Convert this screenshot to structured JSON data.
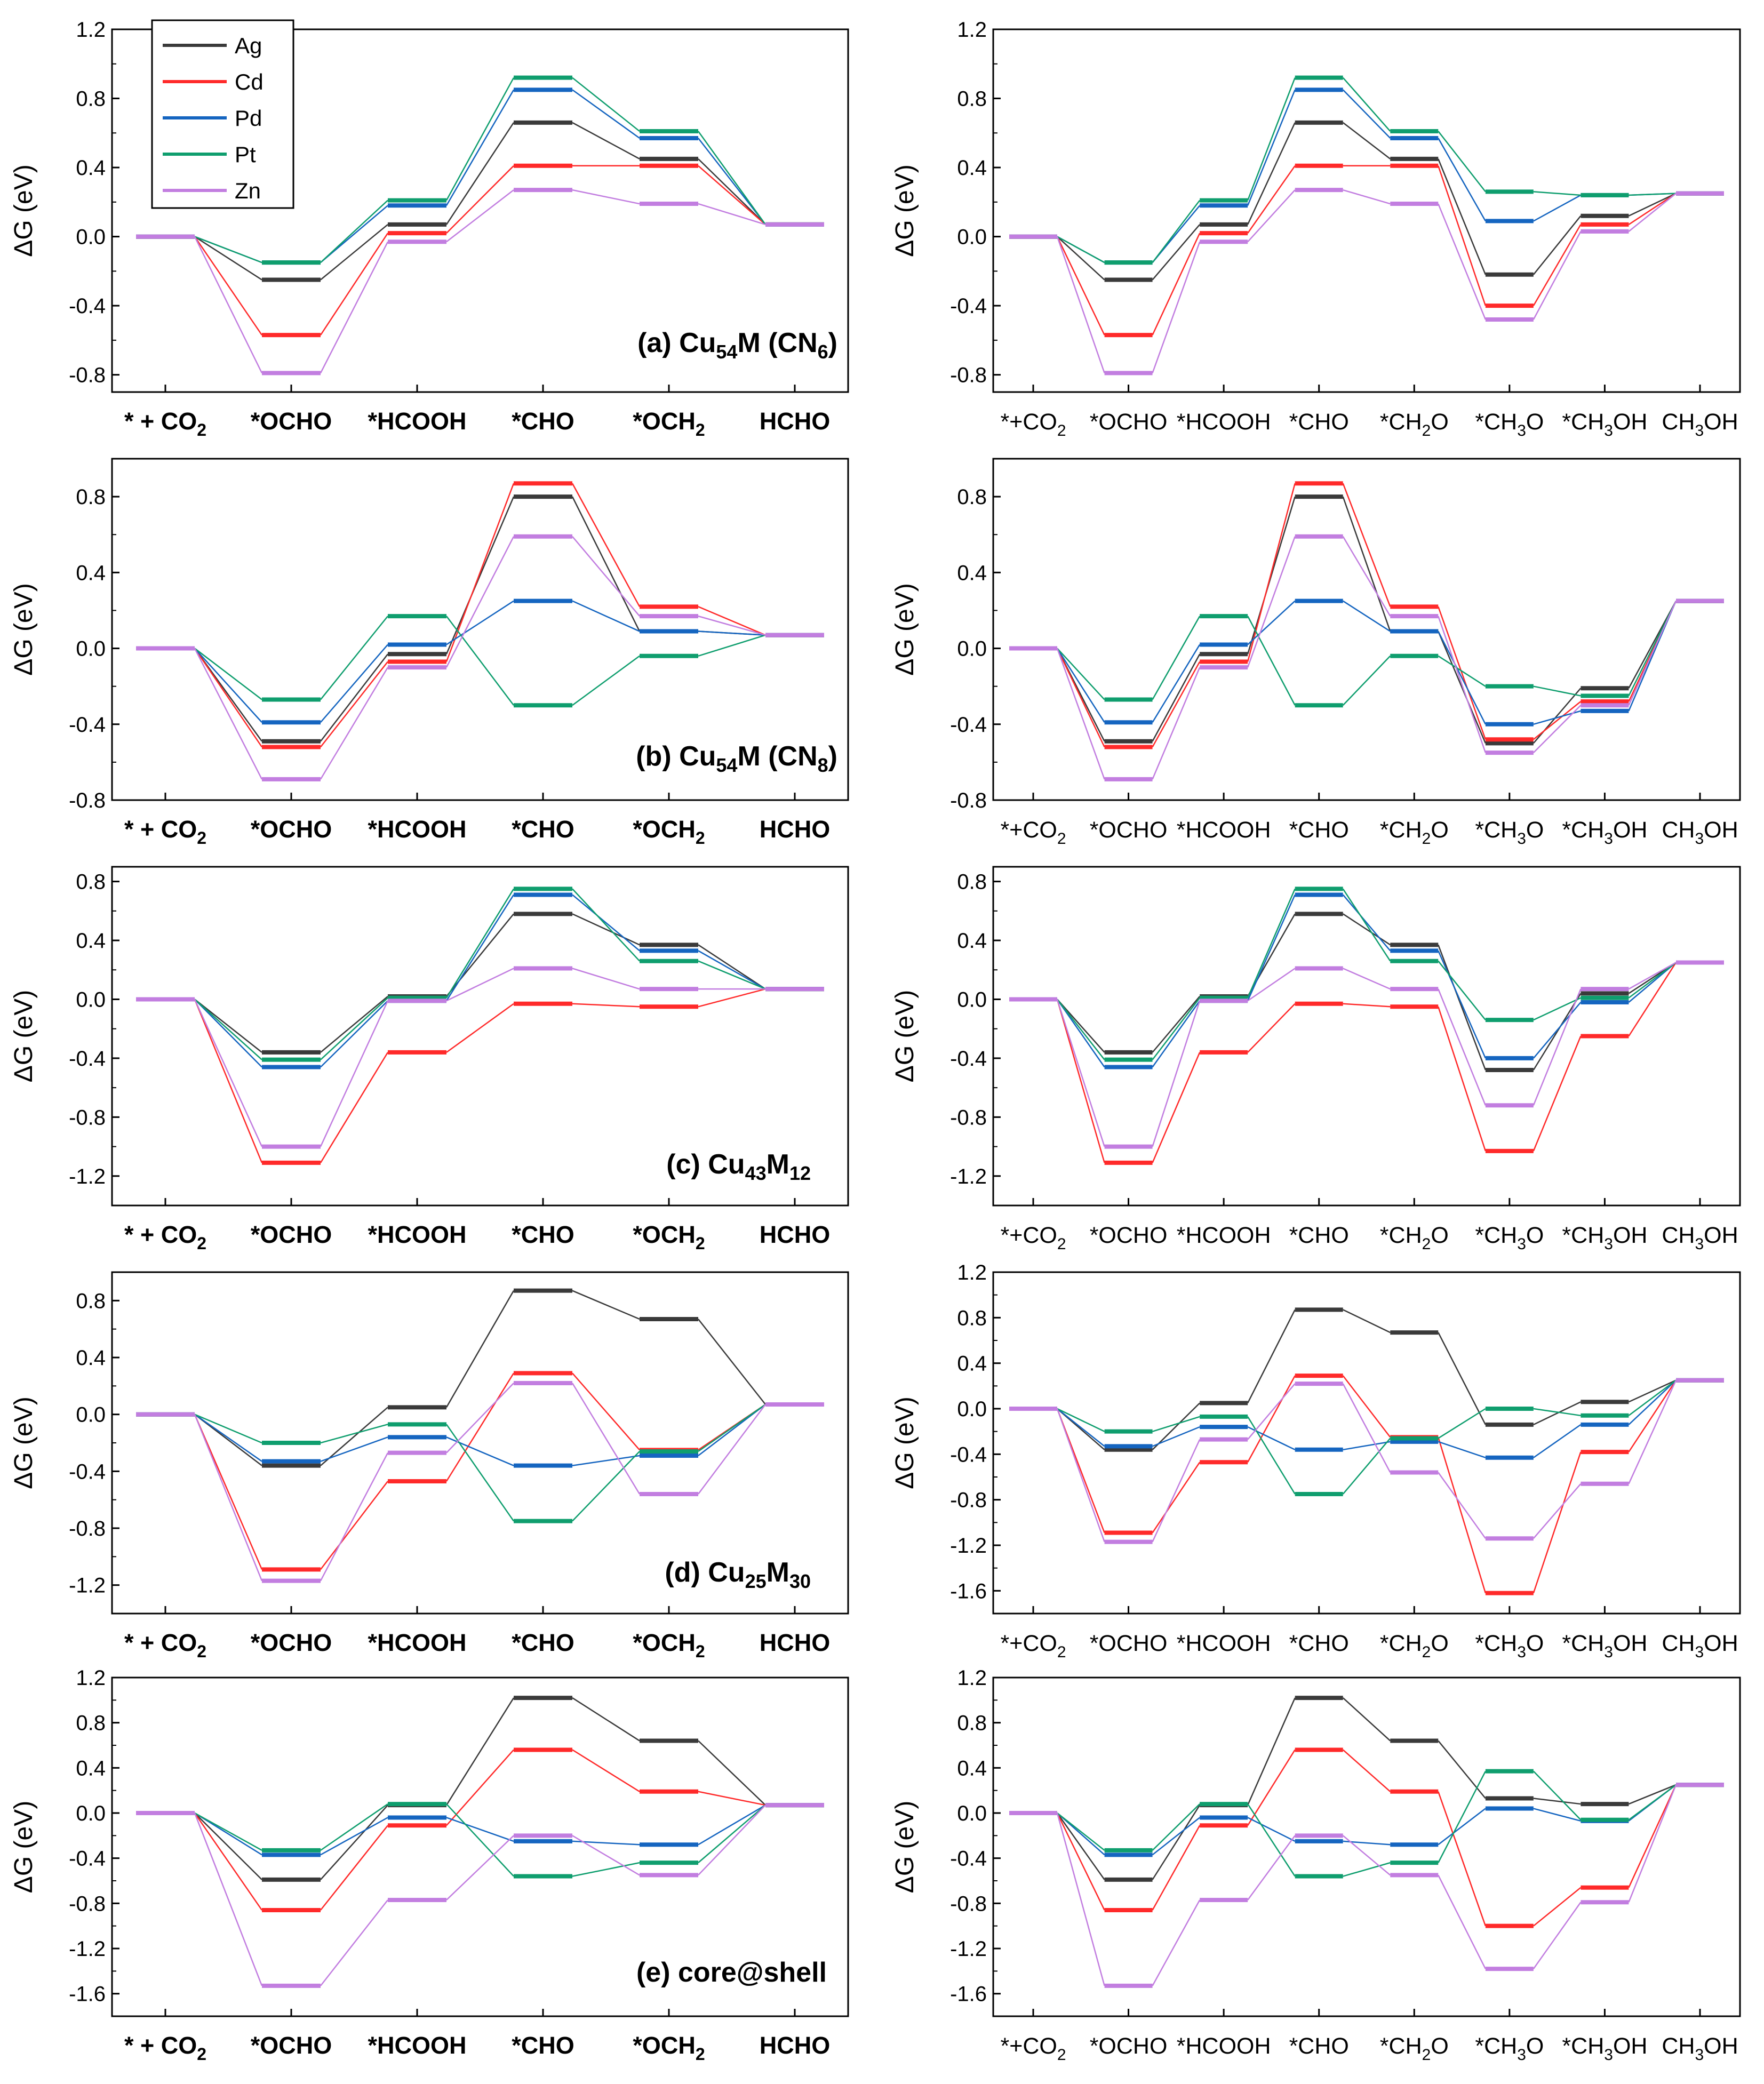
{
  "colors": {
    "Ag": "#3a3a3a",
    "Cd": "#ff2a2a",
    "Pd": "#1565c0",
    "Pt": "#0f9e6e",
    "Zn": "#c27ee0"
  },
  "legend": [
    "Ag",
    "Cd",
    "Pd",
    "Pt",
    "Zn"
  ],
  "ylabel": "ΔG (eV)",
  "chart_data": [
    {
      "type": "line",
      "id": "a-left",
      "panel_label": "(a) Cu54M (CN6)",
      "ylim": [
        -0.9,
        1.2
      ],
      "ticks": [
        "1.2",
        "0.8",
        "0.4",
        "0.0",
        "-0.4",
        "-0.8"
      ],
      "categories": [
        "* + CO2",
        "*OCHO",
        "*HCOOH",
        "*CHO",
        "*OCH2",
        "HCHO"
      ],
      "series": [
        {
          "name": "Ag",
          "values": [
            0,
            -0.25,
            0.07,
            0.66,
            0.45,
            0.07
          ]
        },
        {
          "name": "Cd",
          "values": [
            0,
            -0.57,
            0.02,
            0.41,
            0.41,
            0.07
          ]
        },
        {
          "name": "Pd",
          "values": [
            0,
            -0.15,
            0.18,
            0.85,
            0.57,
            0.07
          ]
        },
        {
          "name": "Pt",
          "values": [
            0,
            -0.15,
            0.21,
            0.92,
            0.61,
            0.07
          ]
        },
        {
          "name": "Zn",
          "values": [
            0,
            -0.79,
            -0.03,
            0.27,
            0.19,
            0.07
          ]
        }
      ]
    },
    {
      "type": "line",
      "id": "a-right",
      "panel_label": "",
      "ylim": [
        -0.9,
        1.2
      ],
      "ticks": [
        "1.2",
        "0.8",
        "0.4",
        "0.0",
        "-0.4",
        "-0.8"
      ],
      "categories": [
        "*+CO2",
        "*OCHO",
        "*HCOOH",
        "*CHO",
        "*CH2O",
        "*CH3O",
        "*CH3OH",
        "CH3OH"
      ],
      "series": [
        {
          "name": "Ag",
          "values": [
            0,
            -0.25,
            0.07,
            0.66,
            0.45,
            -0.22,
            0.12,
            0.25
          ]
        },
        {
          "name": "Cd",
          "values": [
            0,
            -0.57,
            0.02,
            0.41,
            0.41,
            -0.4,
            0.07,
            0.25
          ]
        },
        {
          "name": "Pd",
          "values": [
            0,
            -0.15,
            0.18,
            0.85,
            0.57,
            0.09,
            0.24,
            0.25
          ]
        },
        {
          "name": "Pt",
          "values": [
            0,
            -0.15,
            0.21,
            0.92,
            0.61,
            0.26,
            0.24,
            0.25
          ]
        },
        {
          "name": "Zn",
          "values": [
            0,
            -0.79,
            -0.03,
            0.27,
            0.19,
            -0.48,
            0.03,
            0.25
          ]
        }
      ]
    },
    {
      "type": "line",
      "id": "b-left",
      "panel_label": "(b) Cu54M (CN8)",
      "ylim": [
        -0.8,
        1.0
      ],
      "ticks": [
        "0.8",
        "0.4",
        "0.0",
        "-0.4",
        "-0.8"
      ],
      "categories": [
        "* + CO2",
        "*OCHO",
        "*HCOOH",
        "*CHO",
        "*OCH2",
        "HCHO"
      ],
      "series": [
        {
          "name": "Ag",
          "values": [
            0,
            -0.49,
            -0.03,
            0.8,
            0.09,
            0.07
          ]
        },
        {
          "name": "Cd",
          "values": [
            0,
            -0.52,
            -0.07,
            0.87,
            0.22,
            0.07
          ]
        },
        {
          "name": "Pd",
          "values": [
            0,
            -0.39,
            0.02,
            0.25,
            0.09,
            0.07
          ]
        },
        {
          "name": "Pt",
          "values": [
            0,
            -0.27,
            0.17,
            -0.3,
            -0.04,
            0.07
          ]
        },
        {
          "name": "Zn",
          "values": [
            0,
            -0.69,
            -0.1,
            0.59,
            0.17,
            0.07
          ]
        }
      ]
    },
    {
      "type": "line",
      "id": "b-right",
      "panel_label": "",
      "ylim": [
        -0.8,
        1.0
      ],
      "ticks": [
        "0.8",
        "0.4",
        "0.0",
        "-0.4",
        "-0.8"
      ],
      "categories": [
        "*+CO2",
        "*OCHO",
        "*HCOOH",
        "*CHO",
        "*CH2O",
        "*CH3O",
        "*CH3OH",
        "CH3OH"
      ],
      "series": [
        {
          "name": "Ag",
          "values": [
            0,
            -0.49,
            -0.03,
            0.8,
            0.09,
            -0.5,
            -0.21,
            0.25
          ]
        },
        {
          "name": "Cd",
          "values": [
            0,
            -0.52,
            -0.07,
            0.87,
            0.22,
            -0.48,
            -0.28,
            0.25
          ]
        },
        {
          "name": "Pd",
          "values": [
            0,
            -0.39,
            0.02,
            0.25,
            0.09,
            -0.4,
            -0.33,
            0.25
          ]
        },
        {
          "name": "Pt",
          "values": [
            0,
            -0.27,
            0.17,
            -0.3,
            -0.04,
            -0.2,
            -0.25,
            0.25
          ]
        },
        {
          "name": "Zn",
          "values": [
            0,
            -0.69,
            -0.1,
            0.59,
            0.17,
            -0.55,
            -0.3,
            0.25
          ]
        }
      ]
    },
    {
      "type": "line",
      "id": "c-left",
      "panel_label": "(c) Cu43M12",
      "ylim": [
        -1.4,
        0.9
      ],
      "ticks": [
        "0.8",
        "0.4",
        "0.0",
        "-0.4",
        "-0.8",
        "-1.2"
      ],
      "categories": [
        "* + CO2",
        "*OCHO",
        "*HCOOH",
        "*CHO",
        "*OCH2",
        "HCHO"
      ],
      "series": [
        {
          "name": "Ag",
          "values": [
            0,
            -0.36,
            0.02,
            0.58,
            0.37,
            0.07
          ]
        },
        {
          "name": "Cd",
          "values": [
            0,
            -1.11,
            -0.36,
            -0.03,
            -0.05,
            0.07
          ]
        },
        {
          "name": "Pd",
          "values": [
            0,
            -0.46,
            -0.01,
            0.71,
            0.33,
            0.07
          ]
        },
        {
          "name": "Pt",
          "values": [
            0,
            -0.41,
            0.01,
            0.75,
            0.26,
            0.07
          ]
        },
        {
          "name": "Zn",
          "values": [
            0,
            -1.0,
            -0.01,
            0.21,
            0.07,
            0.07
          ]
        }
      ]
    },
    {
      "type": "line",
      "id": "c-right",
      "panel_label": "",
      "ylim": [
        -1.4,
        0.9
      ],
      "ticks": [
        "0.8",
        "0.4",
        "0.0",
        "-0.4",
        "-0.8",
        "-1.2"
      ],
      "categories": [
        "*+CO2",
        "*OCHO",
        "*HCOOH",
        "*CHO",
        "*CH2O",
        "*CH3O",
        "*CH3OH",
        "CH3OH"
      ],
      "series": [
        {
          "name": "Ag",
          "values": [
            0,
            -0.36,
            0.02,
            0.58,
            0.37,
            -0.48,
            0.04,
            0.25
          ]
        },
        {
          "name": "Cd",
          "values": [
            0,
            -1.11,
            -0.36,
            -0.03,
            -0.05,
            -1.03,
            -0.25,
            0.25
          ]
        },
        {
          "name": "Pd",
          "values": [
            0,
            -0.46,
            -0.01,
            0.71,
            0.33,
            -0.4,
            -0.02,
            0.25
          ]
        },
        {
          "name": "Pt",
          "values": [
            0,
            -0.41,
            0.01,
            0.75,
            0.26,
            -0.14,
            0.01,
            0.25
          ]
        },
        {
          "name": "Zn",
          "values": [
            0,
            -1.0,
            -0.01,
            0.21,
            0.07,
            -0.72,
            0.07,
            0.25
          ]
        }
      ]
    },
    {
      "type": "line",
      "id": "d-left",
      "panel_label": "(d) Cu25M30",
      "ylim": [
        -1.4,
        1.0
      ],
      "ticks": [
        "0.8",
        "0.4",
        "0.0",
        "-0.4",
        "-0.8",
        "-1.2"
      ],
      "categories": [
        "* + CO2",
        "*OCHO",
        "*HCOOH",
        "*CHO",
        "*OCH2",
        "HCHO"
      ],
      "series": [
        {
          "name": "Ag",
          "values": [
            0,
            -0.36,
            0.05,
            0.87,
            0.67,
            0.07
          ]
        },
        {
          "name": "Cd",
          "values": [
            0,
            -1.09,
            -0.47,
            0.29,
            -0.25,
            0.07
          ]
        },
        {
          "name": "Pd",
          "values": [
            0,
            -0.33,
            -0.16,
            -0.36,
            -0.29,
            0.07
          ]
        },
        {
          "name": "Pt",
          "values": [
            0,
            -0.2,
            -0.07,
            -0.75,
            -0.26,
            0.07
          ]
        },
        {
          "name": "Zn",
          "values": [
            0,
            -1.17,
            -0.27,
            0.22,
            -0.56,
            0.07
          ]
        }
      ]
    },
    {
      "type": "line",
      "id": "d-right",
      "panel_label": "",
      "ylim": [
        -1.8,
        1.2
      ],
      "ticks": [
        "1.2",
        "0.8",
        "0.4",
        "0.0",
        "-0.4",
        "-0.8",
        "-1.2",
        "-1.6"
      ],
      "categories": [
        "*+CO2",
        "*OCHO",
        "*HCOOH",
        "*CHO",
        "*CH2O",
        "*CH3O",
        "*CH3OH",
        "CH3OH"
      ],
      "series": [
        {
          "name": "Ag",
          "values": [
            0,
            -0.36,
            0.05,
            0.87,
            0.67,
            -0.14,
            0.06,
            0.25
          ]
        },
        {
          "name": "Cd",
          "values": [
            0,
            -1.09,
            -0.47,
            0.29,
            -0.25,
            -1.62,
            -0.38,
            0.25
          ]
        },
        {
          "name": "Pd",
          "values": [
            0,
            -0.33,
            -0.16,
            -0.36,
            -0.29,
            -0.43,
            -0.14,
            0.25
          ]
        },
        {
          "name": "Pt",
          "values": [
            0,
            -0.2,
            -0.07,
            -0.75,
            -0.26,
            0.0,
            -0.06,
            0.25
          ]
        },
        {
          "name": "Zn",
          "values": [
            0,
            -1.17,
            -0.27,
            0.22,
            -0.56,
            -1.14,
            -0.66,
            0.25
          ]
        }
      ]
    },
    {
      "type": "line",
      "id": "e-left",
      "panel_label": "(e) core@shell",
      "ylim": [
        -1.8,
        1.2
      ],
      "ticks": [
        "1.2",
        "0.8",
        "0.4",
        "0.0",
        "-0.4",
        "-0.8",
        "-1.2",
        "-1.6"
      ],
      "categories": [
        "* + CO2",
        "*OCHO",
        "*HCOOH",
        "*CHO",
        "*OCH2",
        "HCHO"
      ],
      "series": [
        {
          "name": "Ag",
          "values": [
            0,
            -0.59,
            0.07,
            1.02,
            0.64,
            0.07
          ]
        },
        {
          "name": "Cd",
          "values": [
            0,
            -0.86,
            -0.11,
            0.56,
            0.19,
            0.07
          ]
        },
        {
          "name": "Pd",
          "values": [
            0,
            -0.37,
            -0.04,
            -0.25,
            -0.28,
            0.07
          ]
        },
        {
          "name": "Pt",
          "values": [
            0,
            -0.33,
            0.08,
            -0.56,
            -0.44,
            0.07
          ]
        },
        {
          "name": "Zn",
          "values": [
            0,
            -1.53,
            -0.77,
            -0.2,
            -0.55,
            0.07
          ]
        }
      ]
    },
    {
      "type": "line",
      "id": "e-right",
      "panel_label": "",
      "ylim": [
        -1.8,
        1.2
      ],
      "ticks": [
        "1.2",
        "0.8",
        "0.4",
        "0.0",
        "-0.4",
        "-0.8",
        "-1.2",
        "-1.6"
      ],
      "categories": [
        "*+CO2",
        "*OCHO",
        "*HCOOH",
        "*CHO",
        "*CH2O",
        "*CH3O",
        "*CH3OH",
        "CH3OH"
      ],
      "series": [
        {
          "name": "Ag",
          "values": [
            0,
            -0.59,
            0.07,
            1.02,
            0.64,
            0.13,
            0.08,
            0.25
          ]
        },
        {
          "name": "Cd",
          "values": [
            0,
            -0.86,
            -0.11,
            0.56,
            0.19,
            -1.0,
            -0.66,
            0.25
          ]
        },
        {
          "name": "Pd",
          "values": [
            0,
            -0.37,
            -0.04,
            -0.25,
            -0.28,
            0.04,
            -0.07,
            0.25
          ]
        },
        {
          "name": "Pt",
          "values": [
            0,
            -0.33,
            0.08,
            -0.56,
            -0.44,
            0.37,
            -0.06,
            0.25
          ]
        },
        {
          "name": "Zn",
          "values": [
            0,
            -1.53,
            -0.77,
            -0.2,
            -0.55,
            -1.38,
            -0.79,
            0.25
          ]
        }
      ]
    }
  ]
}
